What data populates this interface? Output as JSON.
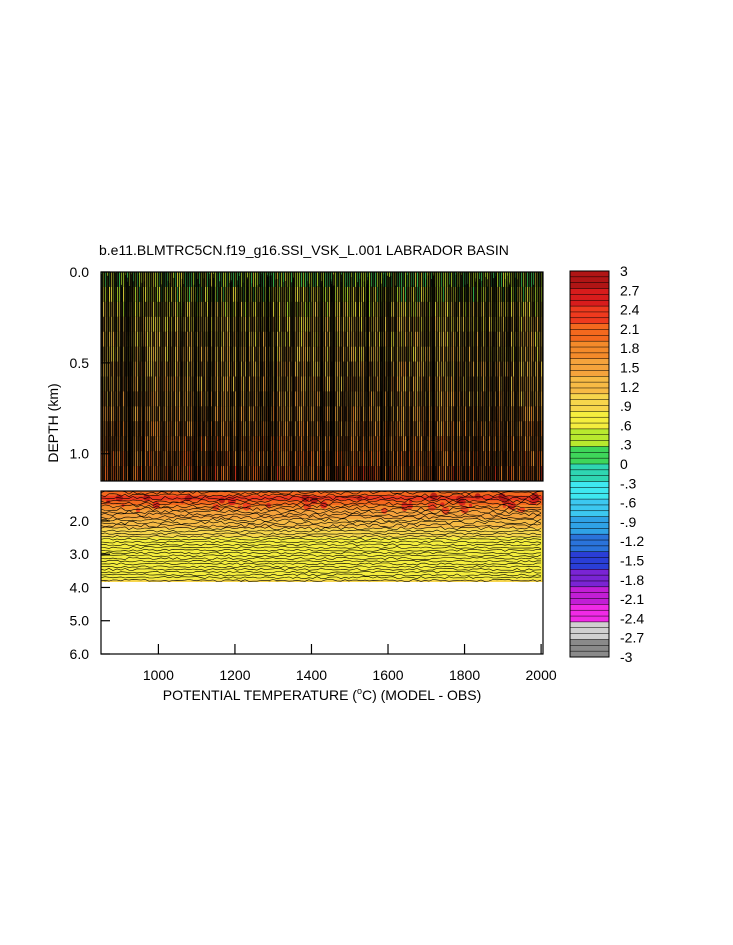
{
  "chart_data": {
    "type": "heatmap",
    "title": "b.e11.BLMTRC5CN.f19_g16.SSI_VSK_L.001 LABRADOR BASIN",
    "xlabel": "POTENTIAL TEMPERATURE (",
    "xlabel_unit_sup": "o",
    "xlabel_unit": "C) (MODEL - OBS)",
    "ylabel": "DEPTH (km)",
    "xlim": [
      850,
      2005
    ],
    "x_ticks": [
      "1000",
      "1200",
      "1400",
      "1600",
      "1800",
      "2000"
    ],
    "x_tick_values": [
      1000,
      1200,
      1400,
      1600,
      1800,
      2000
    ],
    "upper_panel": {
      "ylim": [
        0.0,
        1.15
      ],
      "y_ticks": [
        "0.0",
        "0.5",
        "1.0"
      ],
      "y_tick_values": [
        0.0,
        0.5,
        1.0
      ]
    },
    "lower_panel": {
      "ylim": [
        1.1,
        6.0
      ],
      "y_ticks": [
        "2.0",
        "3.0",
        "4.0",
        "5.0",
        "6.0"
      ],
      "y_tick_values": [
        2.0,
        3.0,
        4.0,
        5.0,
        6.0
      ],
      "data_bottom_km": 3.9
    },
    "depth_profile": [
      {
        "depth": 0.0,
        "value": 0.15
      },
      {
        "depth": 0.05,
        "value": 0.35
      },
      {
        "depth": 0.3,
        "value": 0.9
      },
      {
        "depth": 0.7,
        "value": 1.3
      },
      {
        "depth": 1.1,
        "value": 1.9
      },
      {
        "depth": 1.3,
        "value": 2.3
      },
      {
        "depth": 1.7,
        "value": 1.6
      },
      {
        "depth": 2.2,
        "value": 1.1
      },
      {
        "depth": 2.6,
        "value": 0.75
      },
      {
        "depth": 3.0,
        "value": 0.55
      },
      {
        "depth": 3.4,
        "value": 0.7
      },
      {
        "depth": 3.9,
        "value": 0.85
      }
    ],
    "colorbar": {
      "labels": [
        "3",
        "2.7",
        "2.4",
        "2.1",
        "1.8",
        "1.5",
        "1.2",
        ".9",
        ".6",
        ".3",
        "0",
        "-.3",
        "-.6",
        "-.9",
        "-1.2",
        "-1.5",
        "-1.8",
        "-2.1",
        "-2.4",
        "-2.7",
        "-3"
      ],
      "values": [
        3,
        2.7,
        2.4,
        2.1,
        1.8,
        1.5,
        1.2,
        0.9,
        0.6,
        0.3,
        0,
        -0.3,
        -0.6,
        -0.9,
        -1.2,
        -1.5,
        -1.8,
        -2.1,
        -2.4,
        -2.7,
        -3
      ],
      "colors": [
        "#b01515",
        "#d81c1c",
        "#ee3a1e",
        "#f4691e",
        "#f48a2a",
        "#f5a33c",
        "#f7bb45",
        "#f7d64c",
        "#f5ee3e",
        "#b8ea2e",
        "#3ed65a",
        "#2fd6b2",
        "#3ee8f0",
        "#3cc8f0",
        "#2fa2e6",
        "#2a73da",
        "#2a3ed6",
        "#7a24d4",
        "#c21ed6",
        "#f02ae6",
        "#d0d0d0",
        "#8a8a8a"
      ]
    }
  }
}
